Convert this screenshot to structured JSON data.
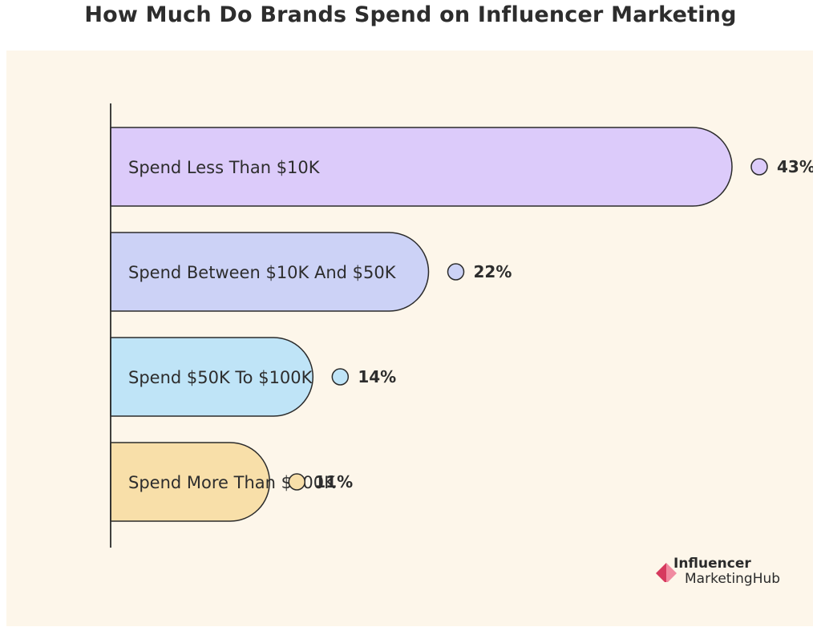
{
  "chart_data": {
    "type": "bar",
    "orientation": "horizontal",
    "title": "How Much Do Brands Spend on Influencer Marketing",
    "categories": [
      "Spend Less Than $10K",
      "Spend Between $10K And $50K",
      "Spend $50K To $100K",
      "Spend More Than $500K"
    ],
    "values": [
      43,
      22,
      14,
      11
    ],
    "value_labels": [
      "43%",
      "22%",
      "14%",
      "11%"
    ],
    "colors": [
      "#dccbfa",
      "#ccd2f6",
      "#bfe4f7",
      "#f8dfa9"
    ],
    "grid": false,
    "legend": "none"
  },
  "brand": {
    "line1": "Influencer",
    "line2": "MarketingHub",
    "colors": {
      "primary": "#d63a5e",
      "secondary": "#f08aa0"
    }
  },
  "colors": {
    "background": "#ffffff",
    "panel": "#fdf6ea",
    "stroke": "#2b2b2b",
    "text": "#2d2d2d"
  }
}
